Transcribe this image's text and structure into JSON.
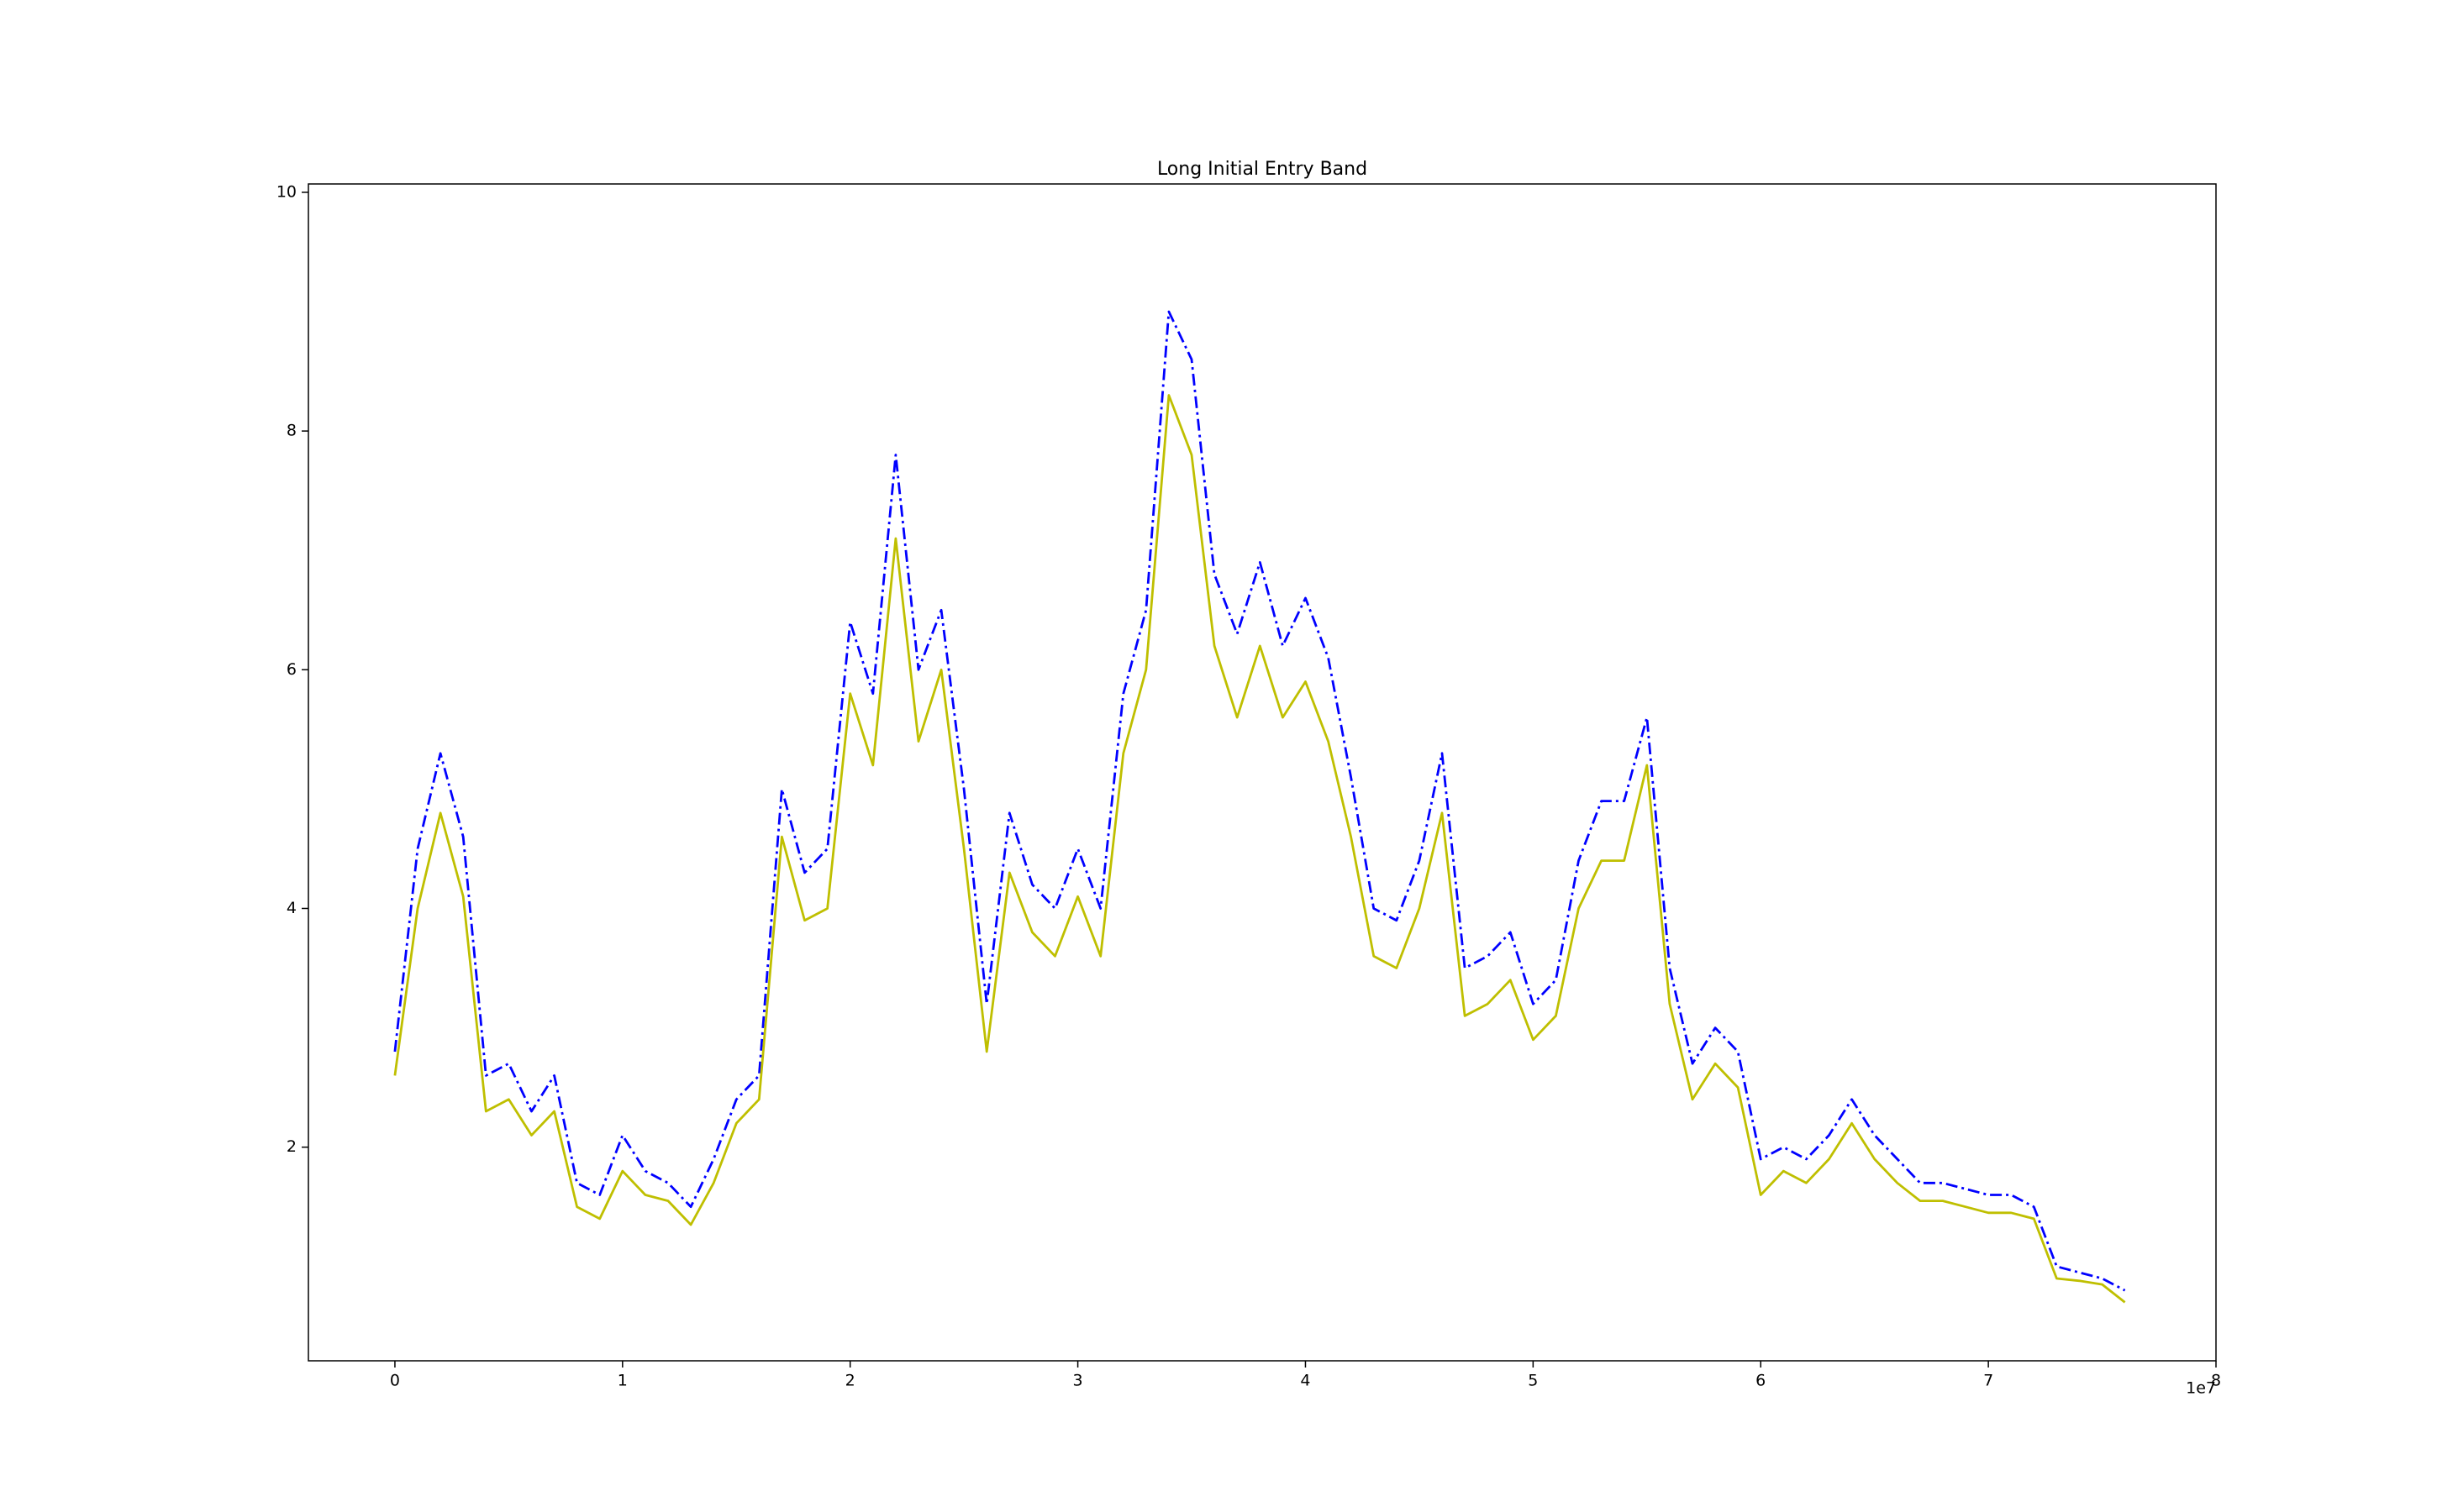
{
  "chart_data": {
    "type": "line",
    "title": "Long Initial Entry Band",
    "x": [
      0,
      1000000,
      2000000,
      3000000,
      4000000,
      5000000,
      6000000,
      7000000,
      8000000,
      9000000,
      10000000,
      11000000,
      12000000,
      13000000,
      14000000,
      15000000,
      16000000,
      17000000,
      18000000,
      19000000,
      20000000,
      21000000,
      22000000,
      23000000,
      24000000,
      25000000,
      26000000,
      27000000,
      28000000,
      29000000,
      30000000,
      31000000,
      32000000,
      33000000,
      34000000,
      35000000,
      36000000,
      37000000,
      38000000,
      39000000,
      40000000,
      41000000,
      42000000,
      43000000,
      44000000,
      45000000,
      46000000,
      47000000,
      48000000,
      49000000,
      50000000,
      51000000,
      52000000,
      53000000,
      54000000,
      55000000,
      56000000,
      57000000,
      58000000,
      59000000,
      60000000,
      61000000,
      62000000,
      63000000,
      64000000,
      65000000,
      66000000,
      67000000,
      68000000,
      69000000,
      70000000,
      71000000,
      72000000,
      73000000,
      74000000,
      75000000,
      76000000
    ],
    "series": [
      {
        "color": "#0000ff",
        "linestyle": "dashdot",
        "values": [
          2.8,
          4.5,
          5.3,
          4.6,
          2.6,
          2.7,
          2.3,
          2.6,
          1.7,
          1.6,
          2.1,
          1.8,
          1.7,
          1.5,
          1.9,
          2.4,
          2.6,
          5.0,
          4.3,
          4.5,
          6.4,
          5.8,
          7.8,
          6.0,
          6.5,
          5.0,
          3.2,
          4.8,
          4.2,
          4.0,
          4.5,
          4.0,
          5.8,
          6.5,
          9.0,
          8.6,
          6.8,
          6.3,
          6.9,
          6.2,
          6.6,
          6.1,
          5.1,
          4.0,
          3.9,
          4.4,
          5.3,
          3.5,
          3.6,
          3.8,
          3.2,
          3.4,
          4.4,
          4.9,
          4.9,
          5.6,
          3.5,
          2.7,
          3.0,
          2.8,
          1.9,
          2.0,
          1.9,
          2.1,
          2.4,
          2.1,
          1.9,
          1.7,
          1.7,
          1.65,
          1.6,
          1.6,
          1.5,
          1.0,
          0.95,
          0.9,
          0.8
        ]
      },
      {
        "color": "#bfbf00",
        "linestyle": "solid",
        "values": [
          2.6,
          4.0,
          4.8,
          4.1,
          2.3,
          2.4,
          2.1,
          2.3,
          1.5,
          1.4,
          1.8,
          1.6,
          1.55,
          1.35,
          1.7,
          2.2,
          2.4,
          4.6,
          3.9,
          4.0,
          5.8,
          5.2,
          7.1,
          5.4,
          6.0,
          4.5,
          2.8,
          4.3,
          3.8,
          3.6,
          4.1,
          3.6,
          5.3,
          6.0,
          8.3,
          7.8,
          6.2,
          5.6,
          6.2,
          5.6,
          5.9,
          5.4,
          4.6,
          3.6,
          3.5,
          4.0,
          4.8,
          3.1,
          3.2,
          3.4,
          2.9,
          3.1,
          4.0,
          4.4,
          4.4,
          5.2,
          3.2,
          2.4,
          2.7,
          2.5,
          1.6,
          1.8,
          1.7,
          1.9,
          2.2,
          1.9,
          1.7,
          1.55,
          1.55,
          1.5,
          1.45,
          1.45,
          1.4,
          0.9,
          0.88,
          0.85,
          0.7
        ]
      }
    ],
    "xlim": [
      -3800000,
      80000000
    ],
    "ylim": [
      0.21,
      10.07
    ],
    "xticks": [
      0,
      {
        "value": 10000000,
        "label": "1"
      },
      {
        "value": 20000000,
        "label": "2"
      },
      {
        "value": 30000000,
        "label": "3"
      },
      {
        "value": 40000000,
        "label": "4"
      },
      {
        "value": 50000000,
        "label": "5"
      },
      {
        "value": 60000000,
        "label": "6"
      },
      {
        "value": 70000000,
        "label": "7"
      },
      {
        "value": 80000000,
        "label": "8"
      }
    ],
    "x_offset_label": "1e7",
    "yticks": [
      2,
      4,
      6,
      8,
      10
    ],
    "grid": false
  }
}
